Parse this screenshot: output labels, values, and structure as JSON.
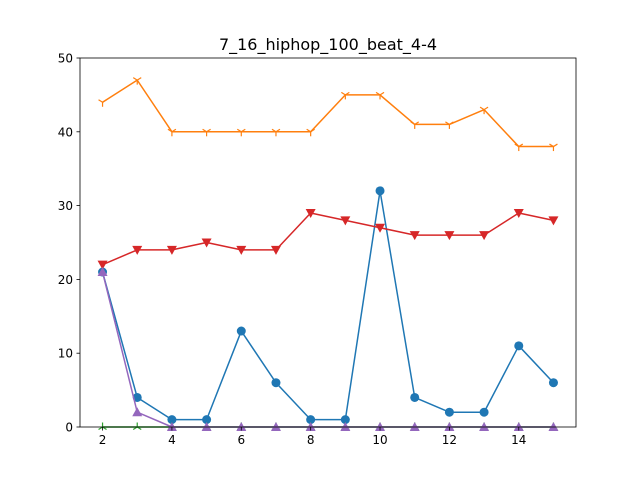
{
  "chart_data": {
    "type": "line",
    "title": "7_16_hiphop_100_beat_4-4",
    "xlabel": "",
    "ylabel": "",
    "xlim": [
      1.35,
      15.65
    ],
    "ylim": [
      0,
      50
    ],
    "xticks": [
      2,
      4,
      6,
      8,
      10,
      12,
      14
    ],
    "yticks": [
      0,
      10,
      20,
      30,
      40,
      50
    ],
    "grid": false,
    "x": [
      2,
      3,
      4,
      5,
      6,
      7,
      8,
      9,
      10,
      11,
      12,
      13,
      14,
      15
    ],
    "series": [
      {
        "color": "#1f77b4",
        "marker": "circle",
        "values": [
          21,
          4,
          1,
          1,
          13,
          6,
          1,
          1,
          32,
          4,
          2,
          2,
          11,
          6
        ]
      },
      {
        "color": "#ff7f0e",
        "marker": "tri_down",
        "values": [
          44,
          47,
          40,
          40,
          40,
          40,
          40,
          45,
          45,
          41,
          41,
          43,
          38,
          38
        ]
      },
      {
        "color": "#2ca02c",
        "marker": "tri_up",
        "values": [
          0,
          0,
          0,
          0,
          0,
          0,
          0,
          0,
          0,
          0,
          0,
          0,
          0,
          0
        ]
      },
      {
        "color": "#d62728",
        "marker": "triangle_down",
        "values": [
          22,
          24,
          24,
          25,
          24,
          24,
          29,
          28,
          27,
          26,
          26,
          26,
          29,
          28
        ]
      },
      {
        "color": "#9467bd",
        "marker": "triangle_up",
        "values": [
          21,
          2,
          0,
          0,
          0,
          0,
          0,
          0,
          0,
          0,
          0,
          0,
          0,
          0
        ]
      }
    ]
  }
}
